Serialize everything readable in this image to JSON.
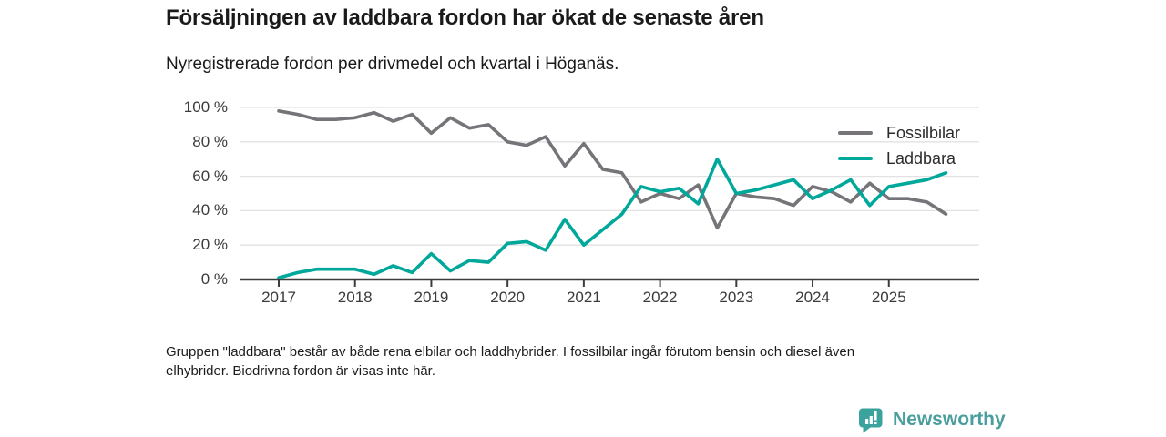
{
  "header": {
    "title": "Försäljningen av laddbara fordon har ökat de senaste åren",
    "subtitle": "Nyregistrerade fordon per drivmedel och kvartal i Höganäs."
  },
  "footer": {
    "line1": "Gruppen \"laddbara\" består av både rena elbilar och laddhybrider. I fossilbilar ingår förutom bensin och diesel även",
    "line2": "elhybrider. Biodrivna fordon är visas inte här."
  },
  "branding": {
    "name": "Newsworthy",
    "color": "#4a9f9e",
    "icon": "bar-chart-pin-icon",
    "icon_color": "#3aa39e"
  },
  "chart_data": {
    "type": "line",
    "title": "Försäljningen av laddbara fordon har ökat de senaste åren",
    "subtitle": "Nyregistrerade fordon per drivmedel och kvartal i Höganäs.",
    "xlabel": "",
    "ylabel": "",
    "unit": "%",
    "ylim": [
      0,
      100
    ],
    "grid": true,
    "legend_position": "top-right",
    "y_tick_values": [
      0,
      20,
      40,
      60,
      80,
      100
    ],
    "y_tick_labels": [
      "0 %",
      "20 %",
      "40 %",
      "60 %",
      "80 %",
      "100 %"
    ],
    "x_tick_labels": [
      "2017",
      "2018",
      "2019",
      "2020",
      "2021",
      "2022",
      "2023",
      "2024",
      "2025"
    ],
    "categories": [
      "2017 Q1",
      "2017 Q2",
      "2017 Q3",
      "2017 Q4",
      "2018 Q1",
      "2018 Q2",
      "2018 Q3",
      "2018 Q4",
      "2019 Q1",
      "2019 Q2",
      "2019 Q3",
      "2019 Q4",
      "2020 Q1",
      "2020 Q2",
      "2020 Q3",
      "2020 Q4",
      "2021 Q1",
      "2021 Q2",
      "2021 Q3",
      "2021 Q4",
      "2022 Q1",
      "2022 Q2",
      "2022 Q3",
      "2022 Q4",
      "2023 Q1",
      "2023 Q2",
      "2023 Q3",
      "2023 Q4",
      "2024 Q1",
      "2024 Q2",
      "2024 Q3",
      "2024 Q4",
      "2025 Q1",
      "2025 Q2",
      "2025 Q3",
      "2025 Q4"
    ],
    "series": [
      {
        "name": "Fossilbilar",
        "color": "#767479",
        "values": [
          98,
          96,
          93,
          93,
          94,
          97,
          92,
          96,
          85,
          94,
          88,
          90,
          80,
          78,
          83,
          66,
          79,
          64,
          62,
          45,
          50,
          47,
          55,
          30,
          50,
          48,
          47,
          43,
          54,
          51,
          45,
          56,
          47,
          47,
          45,
          38
        ]
      },
      {
        "name": "Laddbara",
        "color": "#00a79b",
        "values": [
          1,
          4,
          6,
          6,
          6,
          3,
          8,
          4,
          15,
          5,
          11,
          10,
          21,
          22,
          17,
          35,
          20,
          29,
          38,
          54,
          51,
          53,
          44,
          70,
          50,
          52,
          55,
          58,
          47,
          52,
          58,
          43,
          54,
          56,
          58,
          62
        ]
      }
    ],
    "colors": {
      "axis": "#3d3d3d",
      "grid": "#e2e2e2",
      "tick_text": "#3b3b3b"
    }
  }
}
